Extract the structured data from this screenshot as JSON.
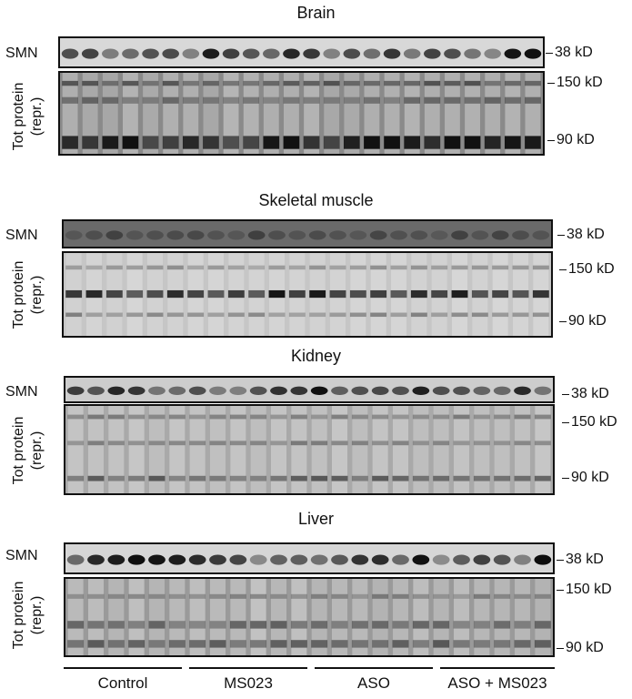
{
  "panels": [
    {
      "title": "Brain",
      "smn_label": "SMN",
      "smn_marker": "38 kD",
      "tot_label_1": "Tot protein",
      "tot_label_2": "(repr.)",
      "tot_marker_high": "150 kD",
      "tot_marker_low": "90 kD"
    },
    {
      "title": "Skeletal muscle",
      "smn_label": "SMN",
      "smn_marker": "38 kD",
      "tot_label_1": "Tot protein",
      "tot_label_2": "(repr.)",
      "tot_marker_high": "150 kD",
      "tot_marker_low": "90 kD"
    },
    {
      "title": "Kidney",
      "smn_label": "SMN",
      "smn_marker": "38 kD",
      "tot_label_1": "Tot protein",
      "tot_label_2": "(repr.)",
      "tot_marker_high": "150 kD",
      "tot_marker_low": "90 kD"
    },
    {
      "title": "Liver",
      "smn_label": "SMN",
      "smn_marker": "38 kD",
      "tot_label_1": "Tot protein",
      "tot_label_2": "(repr.)",
      "tot_marker_high": "150 kD",
      "tot_marker_low": "90 kD"
    }
  ],
  "groups": [
    "Control",
    "MS023",
    "ASO",
    "ASO + MS023"
  ]
}
